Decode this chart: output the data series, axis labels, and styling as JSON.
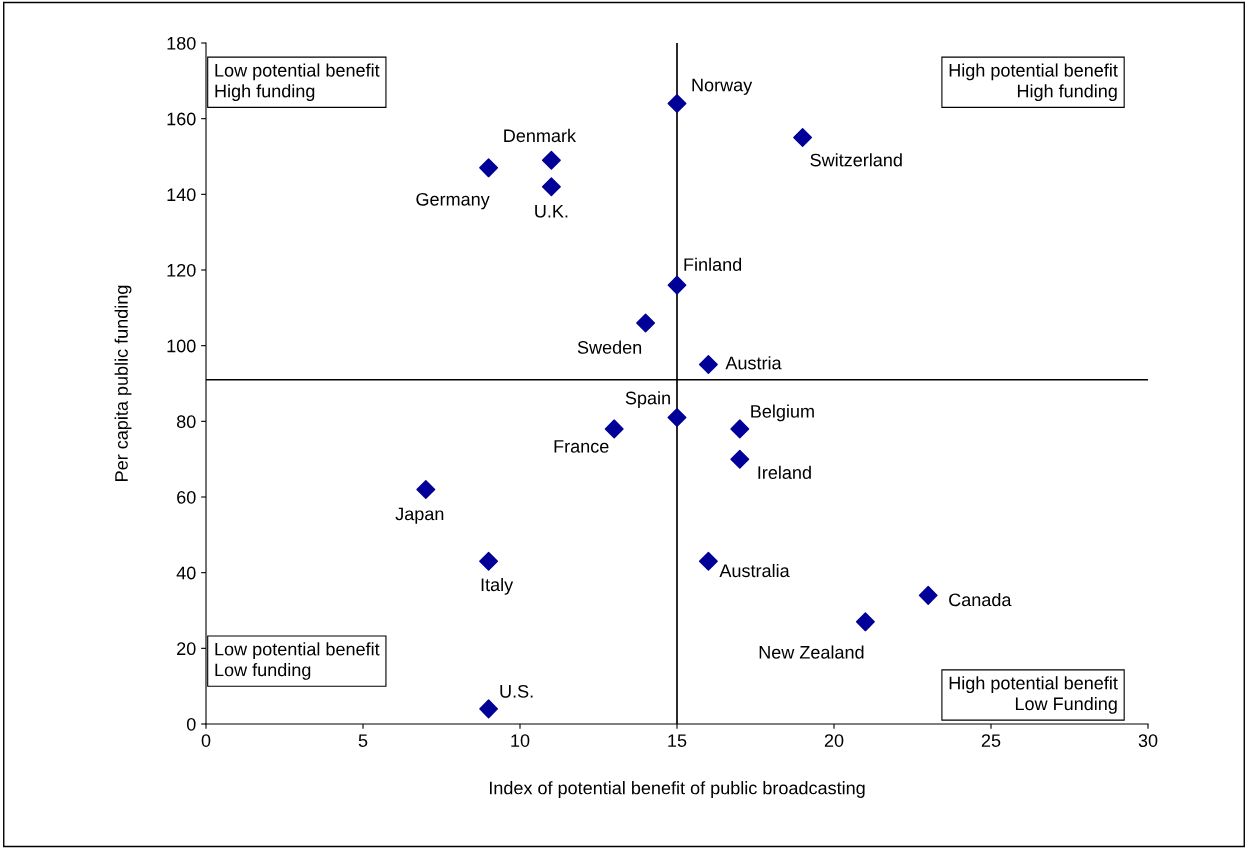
{
  "chart_data": {
    "type": "scatter",
    "xlabel": "Index of potential benefit of public broadcasting",
    "ylabel": "Per capita public funding",
    "x": [
      15,
      19,
      11,
      9,
      11,
      15,
      14,
      16,
      15,
      17,
      13,
      17,
      7,
      9,
      16,
      23,
      21,
      9
    ],
    "series": [
      {
        "color": "#000099",
        "values": [
          164,
          155,
          149,
          147,
          142,
          116,
          106,
          95,
          81,
          78,
          78,
          70,
          62,
          43,
          43,
          34,
          27,
          4
        ]
      }
    ],
    "xlim": [
      0,
      30
    ],
    "ylim": [
      0,
      180
    ],
    "xticks": [
      0,
      5,
      10,
      15,
      20,
      25,
      30
    ],
    "yticks": [
      0,
      20,
      40,
      60,
      80,
      100,
      120,
      140,
      160,
      180
    ],
    "marker": "diamond",
    "grid": false,
    "legend": false,
    "ref_lines": [
      {
        "axis": "x",
        "value": 15,
        "color": "#000000"
      },
      {
        "axis": "y",
        "value": 91,
        "color": "#000000"
      }
    ],
    "annotations": [
      {
        "text": "Norway",
        "x": 15,
        "y": 164
      },
      {
        "text": "Switzerland",
        "x": 19,
        "y": 155
      },
      {
        "text": "Denmark",
        "x": 11,
        "y": 149
      },
      {
        "text": "Germany",
        "x": 9,
        "y": 147
      },
      {
        "text": "U.K.",
        "x": 11,
        "y": 142
      },
      {
        "text": "Finland",
        "x": 15,
        "y": 116
      },
      {
        "text": "Sweden",
        "x": 14,
        "y": 106
      },
      {
        "text": "Austria",
        "x": 16,
        "y": 95
      },
      {
        "text": "Spain",
        "x": 15,
        "y": 81
      },
      {
        "text": "Belgium",
        "x": 17,
        "y": 78
      },
      {
        "text": "France",
        "x": 13,
        "y": 78
      },
      {
        "text": "Ireland",
        "x": 17,
        "y": 70
      },
      {
        "text": "Japan",
        "x": 7,
        "y": 62
      },
      {
        "text": "Italy",
        "x": 9,
        "y": 43
      },
      {
        "text": "Australia",
        "x": 16,
        "y": 43
      },
      {
        "text": "Canada",
        "x": 23,
        "y": 34
      },
      {
        "text": "New Zealand",
        "x": 21,
        "y": 27
      },
      {
        "text": "U.S.",
        "x": 9,
        "y": 4
      },
      "Low potential benefit\nHigh funding",
      "High potential benefit\nHigh funding",
      "Low potential benefit\nLow funding",
      "High potential benefit\nLow Funding"
    ]
  }
}
